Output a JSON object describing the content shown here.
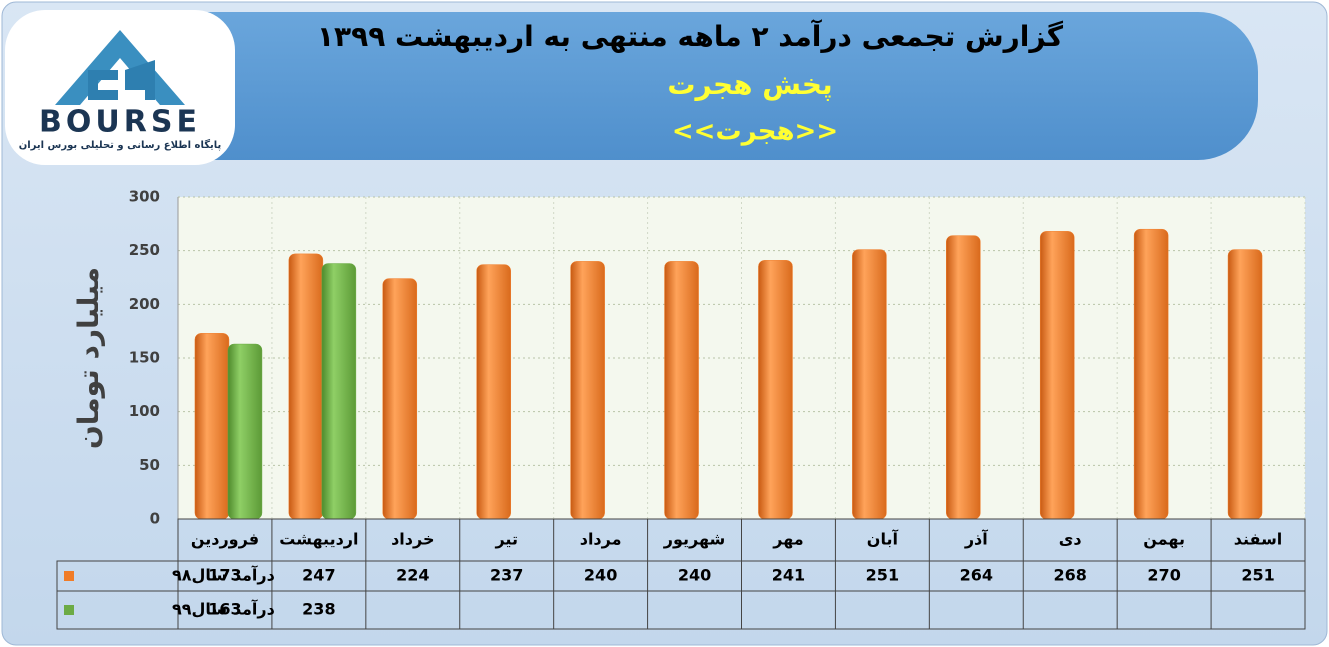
{
  "logo": {
    "name": "BOURSE",
    "tagline": "پایگاه اطلاع رسانی و تحلیلی بورس ایران"
  },
  "chart_data": {
    "type": "bar",
    "title": "گزارش تجمعی درآمد ۲ ماهه منتهی به اردیبهشت ۱۳۹۹",
    "subtitle": "پخش هجرت",
    "ticker": "<<هجرت>>",
    "y_label": "میلیارد تومان",
    "categories": [
      "فروردین",
      "اردیبهشت",
      "خرداد",
      "تیر",
      "مرداد",
      "شهریور",
      "مهر",
      "آبان",
      "آذر",
      "دی",
      "بهمن",
      "اسفند"
    ],
    "series": [
      {
        "name": "درآمد سال۹۸",
        "color": "#f07c28",
        "values": [
          173,
          247,
          224,
          237,
          240,
          240,
          241,
          251,
          264,
          268,
          270,
          251
        ]
      },
      {
        "name": "درآمد سال۹۹",
        "color": "#6cab45",
        "values": [
          163,
          238,
          null,
          null,
          null,
          null,
          null,
          null,
          null,
          null,
          null,
          null
        ]
      }
    ],
    "ylim": [
      0,
      300
    ],
    "yticks": [
      0,
      50,
      100,
      150,
      200,
      250,
      300
    ],
    "grid": true
  }
}
